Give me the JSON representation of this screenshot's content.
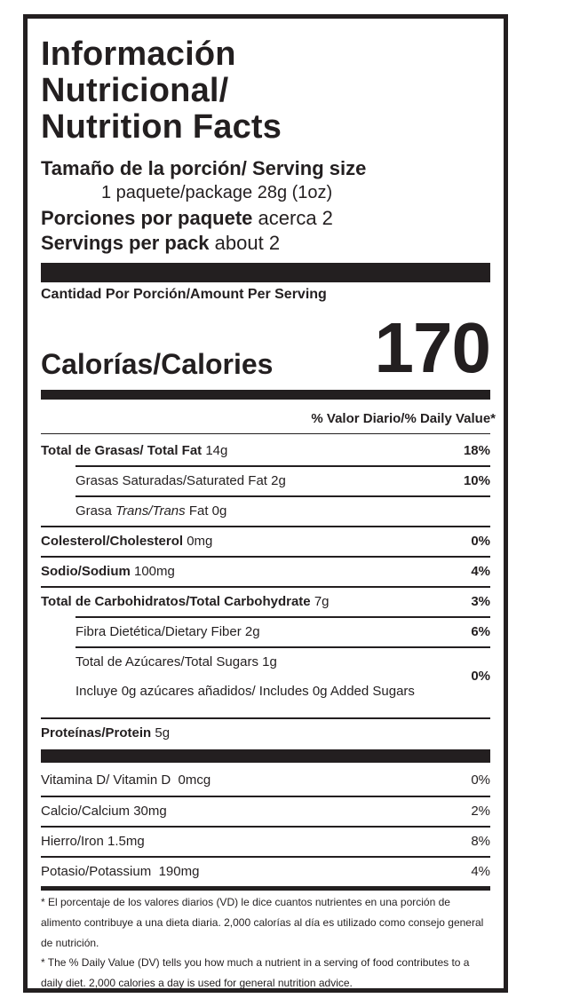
{
  "title_lines": [
    "Información",
    "Nutricional/",
    "Nutrition Facts"
  ],
  "serving": {
    "size_label": "Tamaño de la porción/ Serving size",
    "size_value": "1 paquete/package 28g (1oz)",
    "per_pack_es_label": "Porciones por paquete",
    "per_pack_es_value": "acerca 2",
    "per_pack_en_label": "Servings per pack",
    "per_pack_en_value": "about 2"
  },
  "amount_per_serving": "Cantidad Por Porción/Amount Per Serving",
  "calories": {
    "label": "Calorías/Calories",
    "value": "170"
  },
  "dv_header": "% Valor Diario/% Daily Value*",
  "nutrients": {
    "total_fat": {
      "name": "Total de Grasas/ Total Fat",
      "amount": "14g",
      "pct": "18%"
    },
    "sat_fat": {
      "name": "Grasas Saturadas/Saturated Fat",
      "amount": "2g",
      "pct": "10%"
    },
    "trans_fat": {
      "prefix": "Grasa ",
      "trans_es": "Trans",
      "sep": "/",
      "trans_en": "Trans",
      "suffix": " Fat",
      "amount": "0g"
    },
    "cholesterol": {
      "name": "Colesterol/Cholesterol",
      "amount": "0mg",
      "pct": "0%"
    },
    "sodium": {
      "name": "Sodio/Sodium",
      "amount": "100mg",
      "pct": "4%"
    },
    "carbs": {
      "name": "Total de Carbohidratos/Total Carbohydrate",
      "amount": "7g",
      "pct": "3%"
    },
    "fiber": {
      "name": "Fibra Dietética/Dietary Fiber",
      "amount": "2g",
      "pct": "6%"
    },
    "sugars": {
      "name": "Total de Azúcares/Total Sugars",
      "amount": "1g"
    },
    "added_sugars": {
      "text": "Incluye 0g azúcares añadidos/ Includes 0g Added Sugars",
      "pct": "0%"
    },
    "protein": {
      "name": "Proteínas/Protein",
      "amount": "5g"
    }
  },
  "vitamins": [
    {
      "name": "Vitamina D/ Vitamin D",
      "amount": "0mcg",
      "pct": "0%"
    },
    {
      "name": "Calcio/Calcium",
      "amount": "30mg",
      "pct": "2%"
    },
    {
      "name": "Hierro/Iron",
      "amount": "1.5mg",
      "pct": "8%"
    },
    {
      "name": "Potasio/Potassium",
      "amount": "190mg",
      "pct": "4%"
    }
  ],
  "footnotes": {
    "es": "* El porcentaje de los valores diarios (VD) le dice cuantos nutrientes en una porción de alimento contribuye a una dieta diaria.  2,000 calorías al día es utilizado como consejo general de nutrición.",
    "en": "* The % Daily Value (DV) tells you how much a nutrient in a serving of food contributes to a daily diet. 2,000 calories a day is used for general nutrition advice."
  }
}
